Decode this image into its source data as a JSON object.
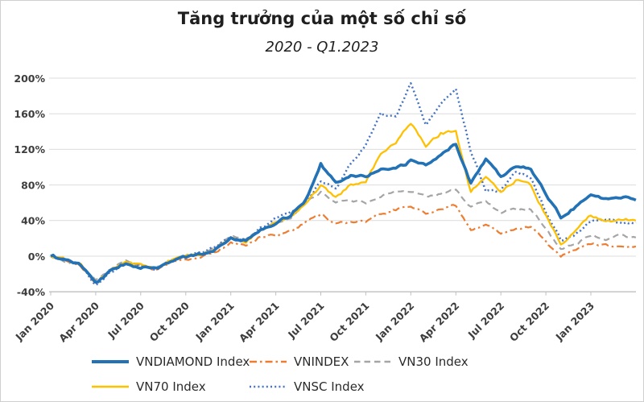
{
  "page": {
    "background_color": "#ffffff",
    "border_color": "#cfcfcf"
  },
  "chart_data": {
    "type": "line",
    "title": "Tăng trưởng của một số chỉ số",
    "subtitle": "2020 - Q1.2023",
    "xlabel": "",
    "ylabel": "",
    "grid": "horizontal",
    "legend_position": "bottom",
    "x_unit": "months_since_jan_2020",
    "x": [
      0,
      1,
      2,
      3,
      4,
      5,
      6,
      7,
      8,
      9,
      10,
      11,
      12,
      13,
      14,
      15,
      16,
      17,
      18,
      19,
      20,
      21,
      22,
      23,
      24,
      25,
      26,
      27,
      28,
      29,
      30,
      31,
      32,
      33,
      34,
      35,
      36,
      37,
      38,
      39
    ],
    "x_tick_positions": [
      0,
      3,
      6,
      9,
      12,
      15,
      18,
      21,
      24,
      27,
      30,
      33,
      36
    ],
    "x_tick_labels": [
      "Jan 2020",
      "Apr 2020",
      "Jul 2020",
      "Oct 2020",
      "Jan 2021",
      "Apr 2021",
      "Jul 2021",
      "Oct 2021",
      "Jan 2022",
      "Apr 2022",
      "Jul 2022",
      "Oct 2022",
      "Jan 2023"
    ],
    "y_tick_values": [
      -40,
      0,
      40,
      80,
      120,
      160,
      200
    ],
    "y_tick_labels": [
      "-40%",
      "0%",
      "40%",
      "80%",
      "120%",
      "160%",
      "200%"
    ],
    "ylim": [
      -40,
      200
    ],
    "axis_color": "#BFBFBF",
    "gridline_color": "#DCDCDC",
    "series": [
      {
        "name": "VNDIAMOND Index",
        "color": "#2272B5",
        "line_style": "solid-thick",
        "values_pct": [
          0,
          -4,
          -10,
          -30,
          -17,
          -8,
          -12,
          -15,
          -5,
          -1,
          2,
          8,
          22,
          17,
          31,
          36,
          46,
          64,
          104,
          82,
          92,
          90,
          97,
          97,
          107,
          103,
          114,
          126,
          82,
          110,
          90,
          102,
          98,
          70,
          44,
          56,
          70,
          64,
          67,
          63
        ]
      },
      {
        "name": "VNINDEX",
        "color": "#ED7D31",
        "line_style": "dash-dot",
        "values_pct": [
          0,
          -6,
          -12,
          -31,
          -16,
          -7,
          -11,
          -16,
          -7,
          -4,
          -1,
          5,
          15,
          11,
          22,
          24,
          28,
          38,
          47,
          36,
          39,
          39,
          47,
          52,
          56,
          49,
          54,
          57,
          30,
          37,
          26,
          30,
          33,
          15,
          0,
          8,
          14,
          12,
          12,
          11
        ]
      },
      {
        "name": "VN30 Index",
        "color": "#A5A5A5",
        "line_style": "dashed",
        "values_pct": [
          0,
          -6,
          -11,
          -28,
          -15,
          -6,
          -10,
          -14,
          -5,
          -1,
          2,
          10,
          22,
          18,
          30,
          36,
          44,
          60,
          72,
          60,
          63,
          60,
          68,
          74,
          72,
          66,
          70,
          74,
          55,
          61,
          49,
          52,
          53,
          32,
          8,
          14,
          24,
          20,
          23,
          21
        ]
      },
      {
        "name": "VN70 Index",
        "color": "#FFC000",
        "line_style": "solid",
        "values_pct": [
          0,
          -4,
          -8,
          -30,
          -15,
          -7,
          -10,
          -13,
          -4,
          0,
          2,
          8,
          20,
          16,
          30,
          38,
          45,
          58,
          80,
          66,
          80,
          83,
          115,
          128,
          150,
          124,
          138,
          140,
          72,
          90,
          72,
          85,
          80,
          45,
          14,
          28,
          46,
          38,
          42,
          40
        ]
      },
      {
        "name": "VNSC Index",
        "color": "#4472C4",
        "line_style": "dotted",
        "values_pct": [
          0,
          -5,
          -9,
          -32,
          -17,
          -8,
          -10,
          -14,
          -4,
          1,
          3,
          10,
          22,
          18,
          32,
          42,
          50,
          60,
          85,
          75,
          105,
          125,
          160,
          155,
          195,
          148,
          170,
          188,
          118,
          74,
          74,
          95,
          88,
          50,
          18,
          25,
          38,
          42,
          37,
          38
        ]
      }
    ]
  }
}
